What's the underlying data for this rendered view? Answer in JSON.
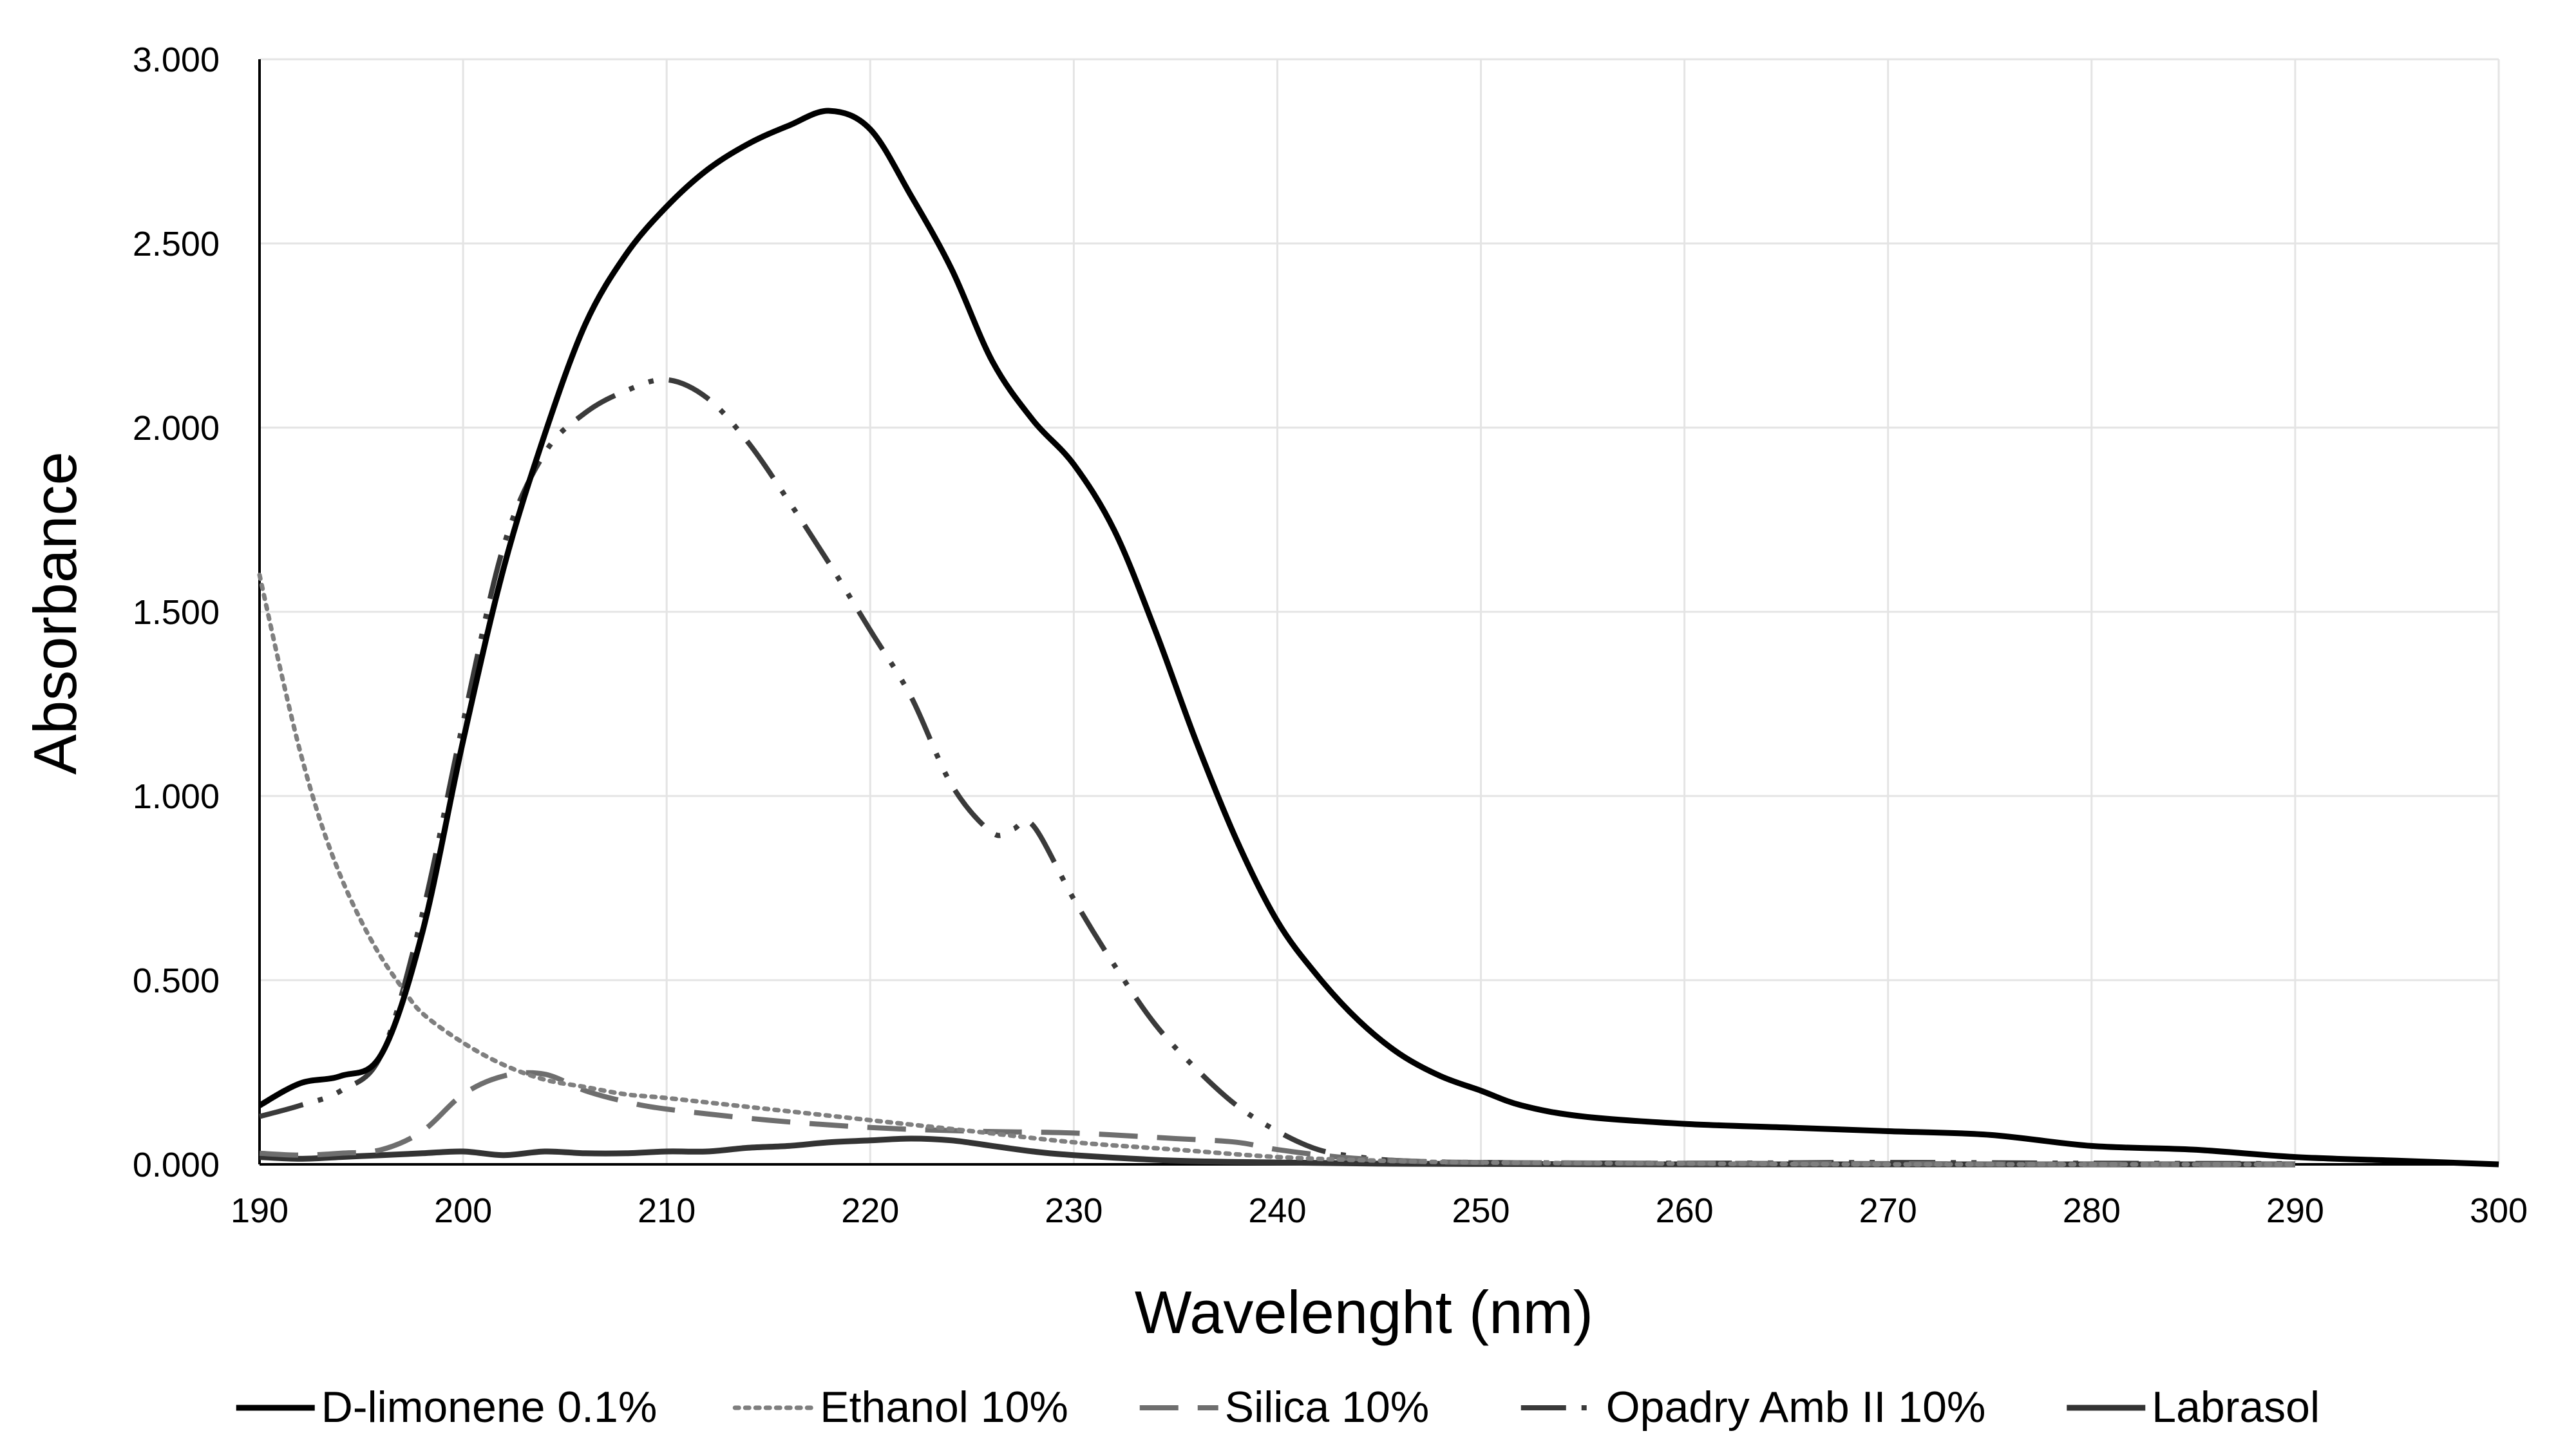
{
  "chart_data": {
    "type": "line",
    "title": "",
    "xlabel": "Wavelenght (nm)",
    "ylabel": "Absorbance",
    "xlim": [
      190,
      300
    ],
    "ylim": [
      0,
      3
    ],
    "x_ticks": [
      190,
      200,
      210,
      220,
      230,
      240,
      250,
      260,
      270,
      280,
      290,
      300
    ],
    "x_tick_labels": [
      "190",
      "200",
      "210",
      "220",
      "230",
      "240",
      "250",
      "260",
      "270",
      "280",
      "290",
      "300"
    ],
    "y_ticks": [
      0,
      0.5,
      1,
      1.5,
      2,
      2.5,
      3
    ],
    "y_tick_labels": [
      "0.000",
      "0.500",
      "1.000",
      "1.500",
      "2.000",
      "2.500",
      "3.000"
    ],
    "grid": true,
    "legend_position": "bottom",
    "series": [
      {
        "name": "D-limonene 0.1%",
        "color": "#000000",
        "style": "solid",
        "x": [
          190,
          192,
          194,
          196,
          198,
          200,
          202,
          204,
          206,
          208,
          210,
          212,
          214,
          216,
          218,
          220,
          222,
          224,
          226,
          228,
          230,
          232,
          234,
          236,
          238,
          240,
          242,
          244,
          246,
          248,
          250,
          252,
          255,
          260,
          265,
          270,
          275,
          280,
          285,
          290,
          295,
          300
        ],
        "y": [
          0.16,
          0.22,
          0.24,
          0.3,
          0.63,
          1.15,
          1.62,
          1.98,
          2.28,
          2.47,
          2.6,
          2.7,
          2.77,
          2.82,
          2.86,
          2.81,
          2.63,
          2.43,
          2.18,
          2.02,
          1.9,
          1.72,
          1.45,
          1.15,
          0.88,
          0.66,
          0.51,
          0.39,
          0.3,
          0.24,
          0.2,
          0.16,
          0.13,
          0.11,
          0.1,
          0.09,
          0.08,
          0.05,
          0.04,
          0.02,
          0.01,
          0.0
        ]
      },
      {
        "name": "Ethanol 10%",
        "color": "#7f7f7f",
        "style": "dotted",
        "x": [
          190,
          191,
          192,
          193,
          194,
          195,
          196,
          197,
          198,
          200,
          202,
          204,
          206,
          208,
          210,
          215,
          220,
          225,
          230,
          235,
          240,
          245,
          250,
          260,
          270,
          280,
          290
        ],
        "y": [
          1.6,
          1.35,
          1.12,
          0.93,
          0.78,
          0.66,
          0.56,
          0.48,
          0.41,
          0.33,
          0.27,
          0.23,
          0.21,
          0.19,
          0.18,
          0.15,
          0.12,
          0.09,
          0.06,
          0.04,
          0.02,
          0.01,
          0.005,
          0.002,
          0.0,
          0.0,
          0.0
        ]
      },
      {
        "name": "Silica 10%",
        "color": "#6e6e6e",
        "style": "dashed",
        "x": [
          190,
          192,
          194,
          196,
          198,
          200,
          202,
          204,
          206,
          208,
          210,
          215,
          220,
          225,
          230,
          235,
          238,
          240,
          243,
          246,
          250,
          260,
          270,
          280,
          290
        ],
        "y": [
          0.03,
          0.025,
          0.03,
          0.04,
          0.09,
          0.19,
          0.24,
          0.245,
          0.2,
          0.17,
          0.15,
          0.12,
          0.1,
          0.09,
          0.085,
          0.07,
          0.06,
          0.04,
          0.02,
          0.01,
          0.005,
          0.003,
          0.002,
          0.0,
          0.0
        ]
      },
      {
        "name": "Opadry Amb II 10%",
        "color": "#3a3a3a",
        "style": "dashdot",
        "x": [
          190,
          192,
          194,
          196,
          198,
          200,
          202,
          204,
          206,
          208,
          210,
          212,
          214,
          216,
          218,
          220,
          222,
          224,
          226,
          227,
          228,
          230,
          232,
          234,
          236,
          238,
          240,
          242,
          244,
          246,
          250,
          260,
          270,
          280,
          290
        ],
        "y": [
          0.13,
          0.16,
          0.2,
          0.3,
          0.68,
          1.2,
          1.68,
          1.93,
          2.04,
          2.1,
          2.13,
          2.08,
          1.96,
          1.8,
          1.63,
          1.45,
          1.27,
          1.03,
          0.9,
          0.91,
          0.92,
          0.72,
          0.54,
          0.38,
          0.26,
          0.16,
          0.09,
          0.04,
          0.02,
          0.01,
          0.005,
          0.003,
          0.005,
          0.003,
          0.002
        ]
      },
      {
        "name": "Labrasol",
        "color": "#333333",
        "style": "solid",
        "x": [
          190,
          192,
          194,
          196,
          198,
          200,
          202,
          204,
          206,
          208,
          210,
          212,
          214,
          216,
          218,
          220,
          222,
          224,
          226,
          228,
          230,
          235,
          240,
          245,
          250,
          260,
          270,
          280,
          290
        ],
        "y": [
          0.02,
          0.015,
          0.02,
          0.025,
          0.03,
          0.035,
          0.025,
          0.035,
          0.03,
          0.03,
          0.035,
          0.035,
          0.045,
          0.05,
          0.06,
          0.065,
          0.07,
          0.065,
          0.05,
          0.035,
          0.025,
          0.01,
          0.005,
          0.002,
          0.001,
          0.0,
          0.0,
          0.0,
          0.0
        ]
      }
    ]
  }
}
